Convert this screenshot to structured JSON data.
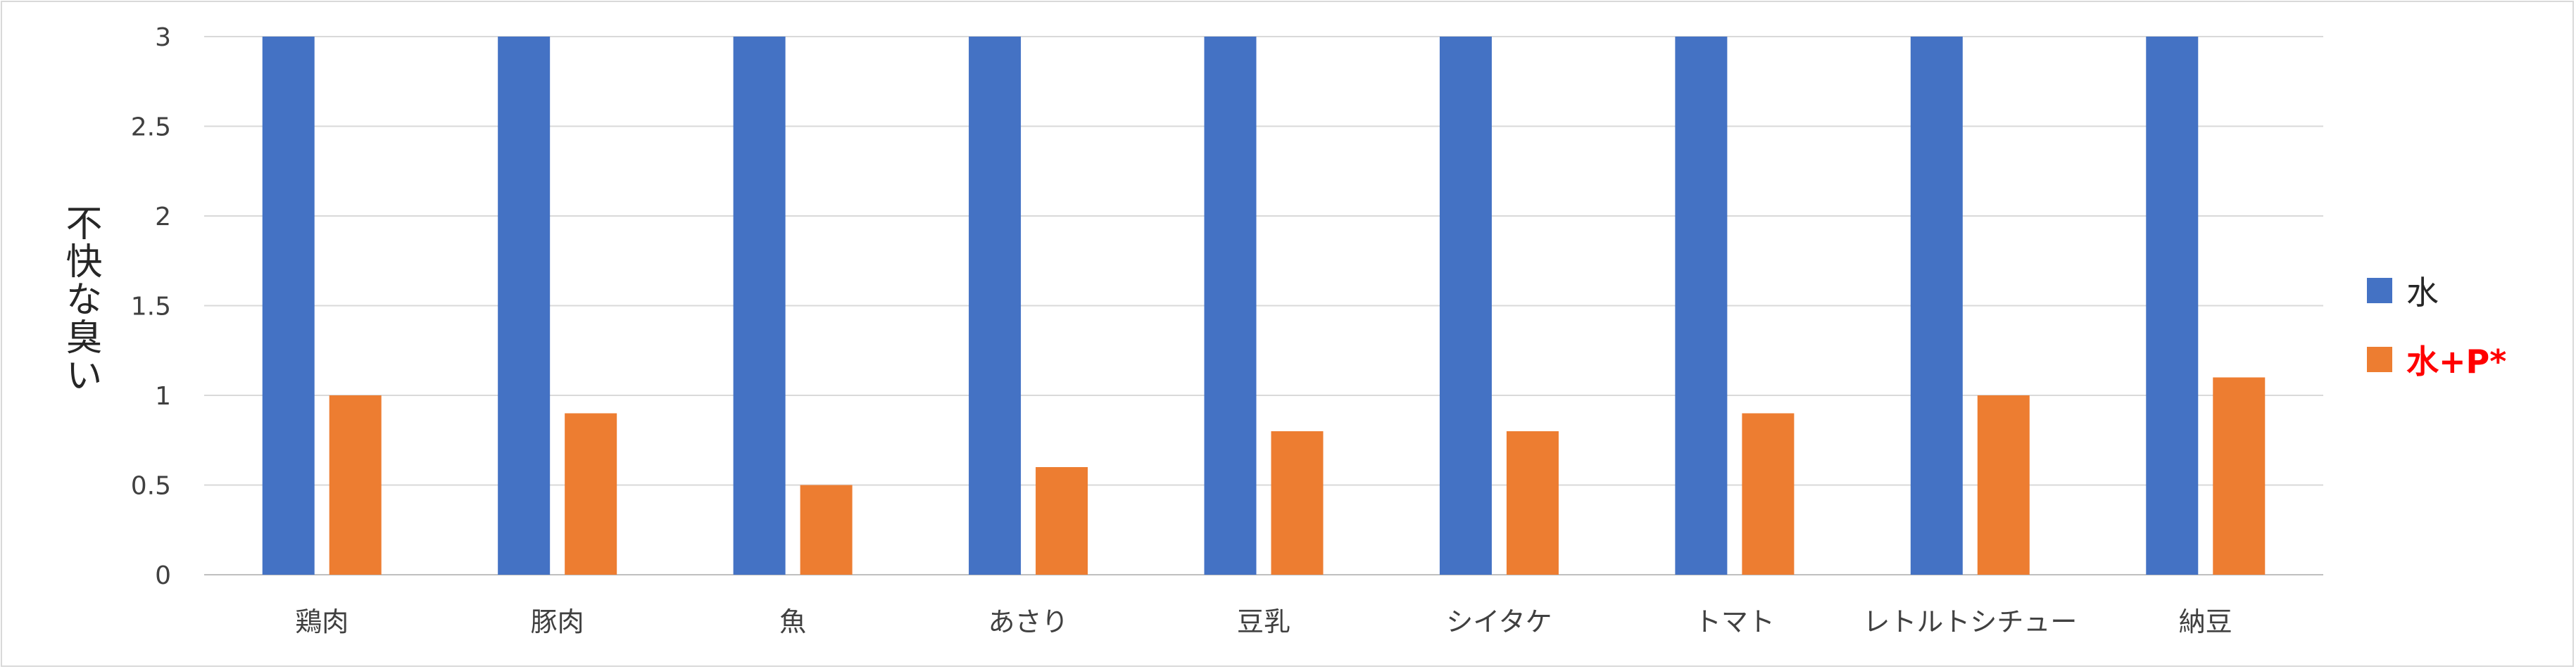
{
  "chart_data": {
    "type": "bar",
    "title": "",
    "xlabel": "",
    "ylabel": "不快な臭い",
    "ylim": [
      0,
      3
    ],
    "yticks": [
      0,
      0.5,
      1,
      1.5,
      2,
      2.5,
      3
    ],
    "ytick_labels": [
      "0",
      "0.5",
      "1",
      "1.5",
      "2",
      "2.5",
      "3"
    ],
    "grid": true,
    "legend_position": "right",
    "categories": [
      "鶏肉",
      "豚肉",
      "魚",
      "あさり",
      "豆乳",
      "シイタケ",
      "トマト",
      "レトルトシチュー",
      "納豆"
    ],
    "series": [
      {
        "name": "水",
        "color": "#4472c4",
        "values": [
          3,
          3,
          3,
          3,
          3,
          3,
          3,
          3,
          3
        ]
      },
      {
        "name": "水+P*",
        "color": "#ed7d31",
        "values": [
          1,
          0.9,
          0.5,
          0.6,
          0.8,
          0.8,
          0.9,
          1,
          1.1
        ]
      }
    ]
  }
}
